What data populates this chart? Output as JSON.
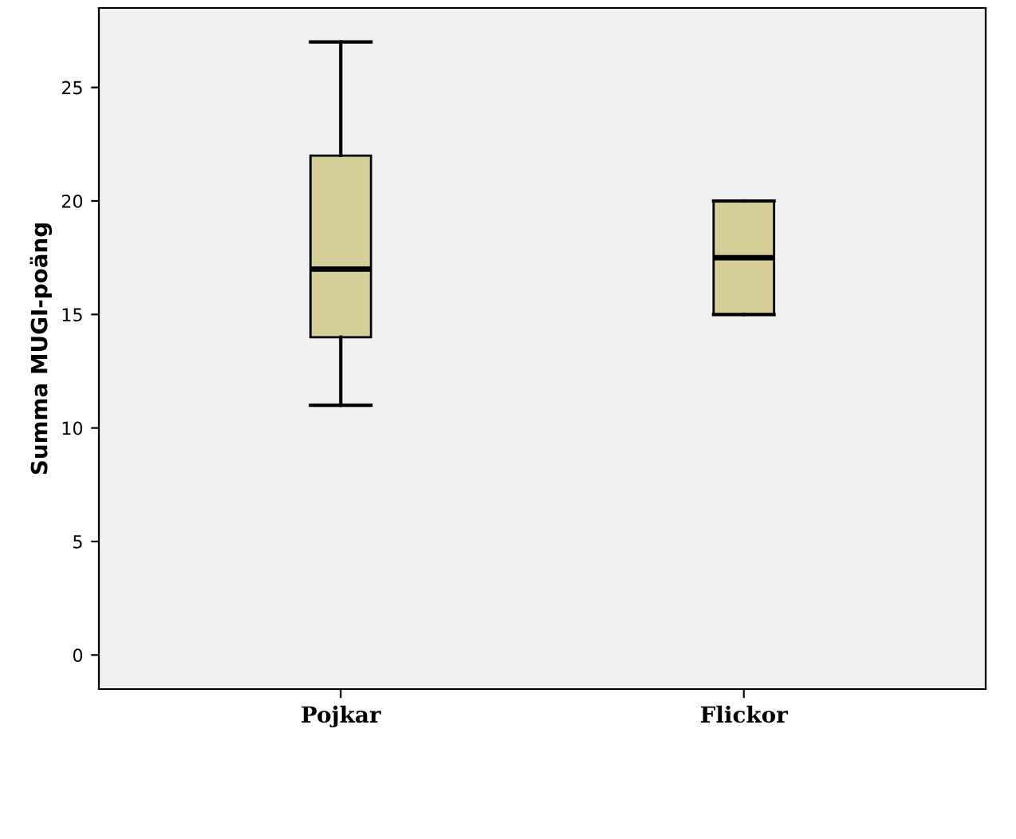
{
  "chart_data": {
    "type": "box",
    "ylabel": "Summa MUGI-poäng",
    "categories": [
      "Pojkar",
      "Flickor"
    ],
    "boxes": [
      {
        "low": 11,
        "q1": 14,
        "median": 17,
        "q3": 22,
        "high": 27
      },
      {
        "low": 15,
        "q1": 15,
        "median": 17.5,
        "q3": 20,
        "high": 20
      }
    ],
    "color": "#d3ce97",
    "ylim": [
      -1.5,
      28.5
    ],
    "yticks": [
      0,
      5,
      10,
      15,
      20,
      25
    ],
    "grid": false
  }
}
